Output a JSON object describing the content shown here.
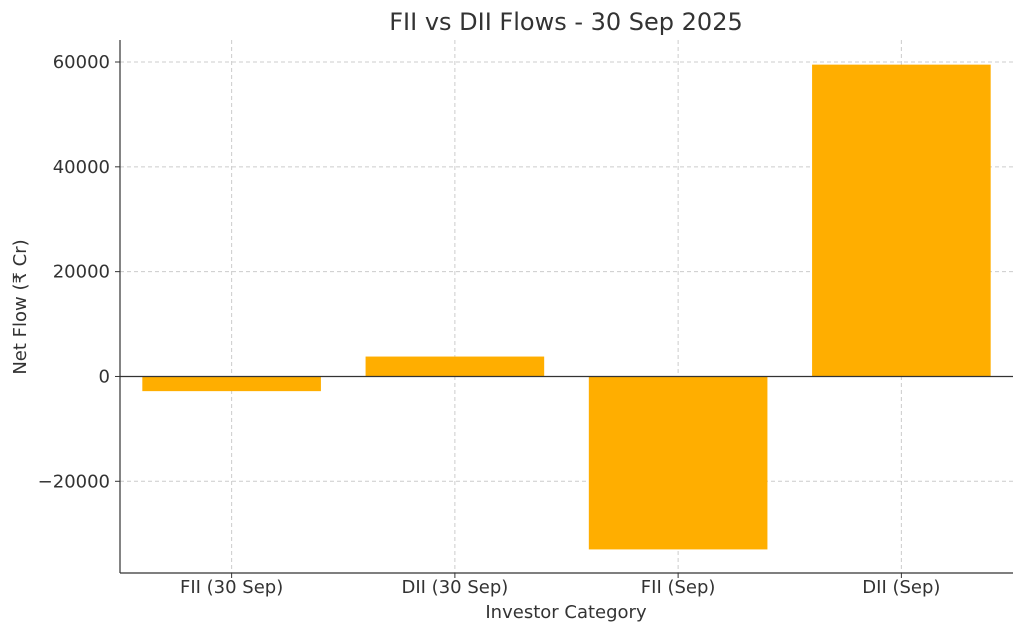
{
  "chart_data": {
    "type": "bar",
    "title": "FII vs DII Flows - 30 Sep 2025",
    "xlabel": "Investor Category",
    "ylabel": "Net Flow (₹ Cr)",
    "categories": [
      "FII (30 Sep)",
      "DII (30 Sep)",
      "FII (Sep)",
      "DII (Sep)"
    ],
    "values": [
      -2800,
      3800,
      -33000,
      59500
    ],
    "ylim": [
      -37500,
      64200
    ],
    "yticks": [
      -20000,
      0,
      20000,
      40000,
      60000
    ],
    "ytick_labels": [
      "−20000",
      "0",
      "20000",
      "40000",
      "60000"
    ],
    "bar_color": "#FFAE00",
    "grid": true,
    "legend": "none"
  }
}
